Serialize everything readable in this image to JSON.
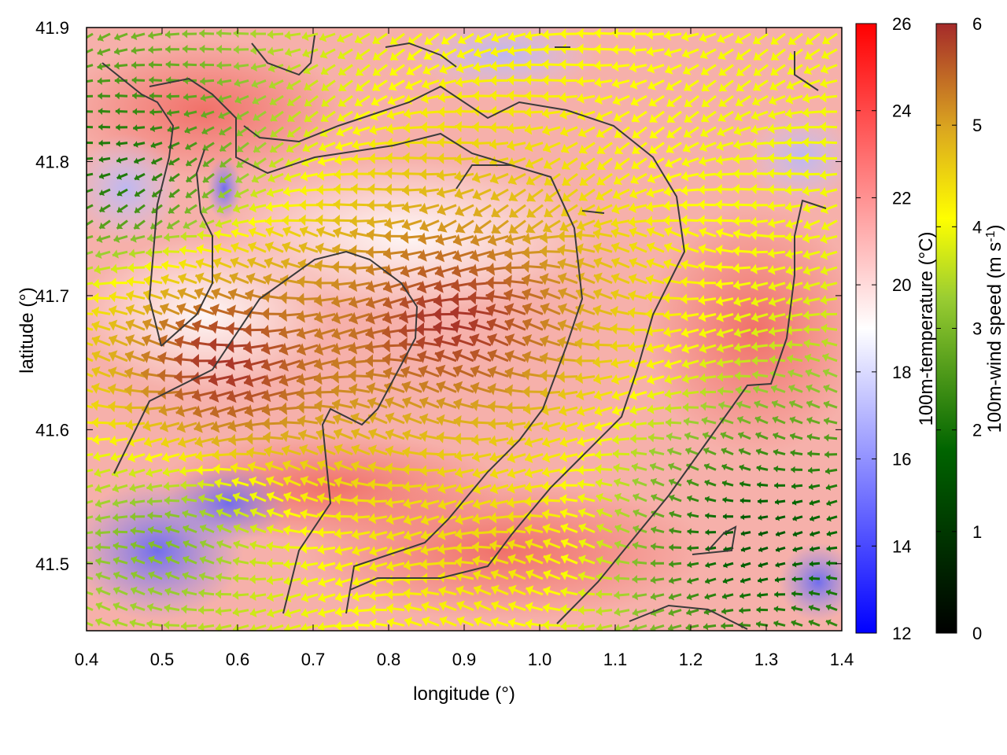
{
  "chart_data": {
    "type": "heatmap",
    "title": "",
    "xlabel": "longitude (°)",
    "ylabel": "latitude (°)",
    "xlim": [
      0.4,
      1.4
    ],
    "ylim": [
      41.45,
      41.9
    ],
    "xticks": [
      "0.4",
      "0.5",
      "0.6",
      "0.7",
      "0.8",
      "0.9",
      "1.0",
      "1.1",
      "1.2",
      "1.3",
      "1.4"
    ],
    "yticks": [
      "41.5",
      "41.6",
      "41.7",
      "41.8",
      "41.9"
    ],
    "grid": false,
    "colorbars": [
      {
        "label": "100m-temperature (°C)",
        "range": [
          12,
          26
        ],
        "ticks": [
          "12",
          "14",
          "16",
          "18",
          "20",
          "22",
          "24",
          "26"
        ],
        "colors": [
          "#0000ff",
          "#ffffff",
          "#ff0000"
        ]
      },
      {
        "label": "100m-wind speed (m s-1)",
        "range": [
          0,
          6
        ],
        "ticks": [
          "0",
          "1",
          "2",
          "3",
          "4",
          "5",
          "6"
        ],
        "colors": [
          "#000000",
          "#006400",
          "#9acd32",
          "#ffff00",
          "#daa520",
          "#a52a2a"
        ]
      }
    ],
    "wind_regions": [
      {
        "lon": 0.9,
        "lat": 41.68,
        "speed": 6,
        "direction": "west"
      },
      {
        "lon": 0.6,
        "lat": 41.65,
        "speed": 6,
        "direction": "west"
      },
      {
        "lon": 0.5,
        "lat": 41.52,
        "speed": 3,
        "direction": "west"
      },
      {
        "lon": 1.3,
        "lat": 41.52,
        "speed": 1.5,
        "direction": "west"
      },
      {
        "lon": 1.3,
        "lat": 41.82,
        "speed": 4,
        "direction": "west"
      },
      {
        "lon": 0.45,
        "lat": 41.8,
        "speed": 2,
        "direction": "west"
      },
      {
        "lon": 0.95,
        "lat": 41.52,
        "speed": 4.5,
        "direction": "west"
      }
    ]
  }
}
